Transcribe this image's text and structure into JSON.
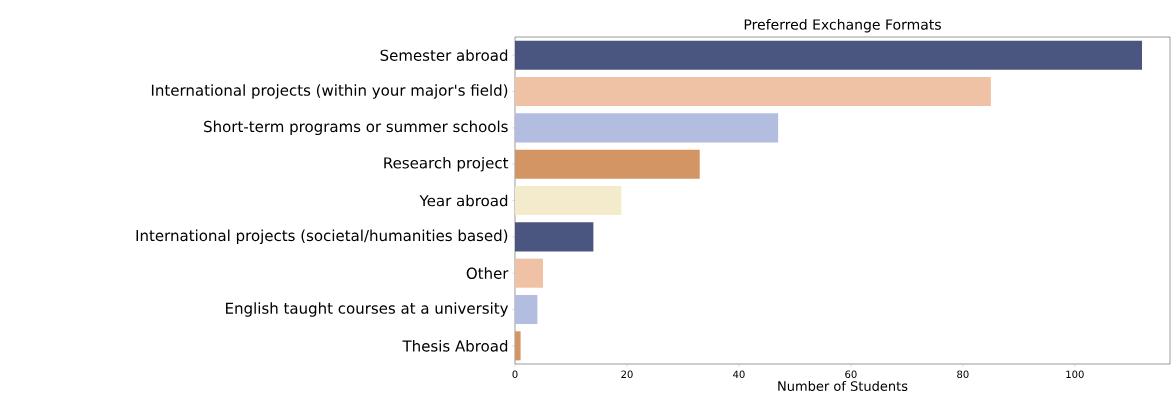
{
  "chart_data": {
    "type": "bar",
    "orientation": "horizontal",
    "title": "Preferred Exchange Formats",
    "xlabel": "Number of Students",
    "categories": [
      "Semester abroad",
      "International projects (within your major's field)",
      "Short-term programs or summer schools",
      "Research project",
      "Year abroad",
      "International projects (societal/humanities based)",
      "Other",
      "English taught courses at a university",
      "Thesis Abroad"
    ],
    "values": [
      112,
      85,
      47,
      33,
      19,
      14,
      5,
      4,
      1
    ],
    "colors": [
      "#4a5680",
      "#f0c2a5",
      "#b2bde0",
      "#d49564",
      "#f3ebcb",
      "#4a5680",
      "#f0c2a5",
      "#b2bde0",
      "#d49564"
    ],
    "xlim": [
      0,
      117
    ],
    "xticks": [
      0,
      20,
      40,
      60,
      80,
      100
    ]
  }
}
